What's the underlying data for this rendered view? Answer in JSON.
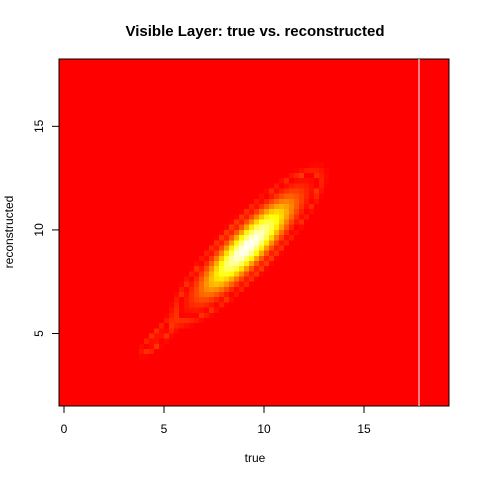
{
  "chart_data": {
    "type": "heatmap",
    "title": "Visible Layer: true vs. reconstructed",
    "xlabel": "true",
    "ylabel": "reconstructed",
    "xlim": [
      -0.25,
      19.25
    ],
    "ylim": [
      1.5,
      18.25
    ],
    "x_ticks": [
      0,
      5,
      10,
      15
    ],
    "y_ticks": [
      5,
      10,
      15
    ],
    "x_tick_labels": [
      "0",
      "5",
      "10",
      "15"
    ],
    "y_tick_labels": [
      "5",
      "10",
      "15"
    ],
    "colors": {
      "background": "#ff0000",
      "mid": "#ff8c00",
      "high": "#ffff00",
      "peak": "#ffffff"
    },
    "density": {
      "main_center": [
        9.2,
        9.2
      ],
      "main_major_sd": 2.1,
      "main_minor_sd": 0.55,
      "main_angle_deg": 45,
      "secondary_center": [
        4.6,
        4.7
      ],
      "secondary_extent": [
        3.8,
        5.5
      ],
      "vertical_line_x": 17.75
    }
  }
}
